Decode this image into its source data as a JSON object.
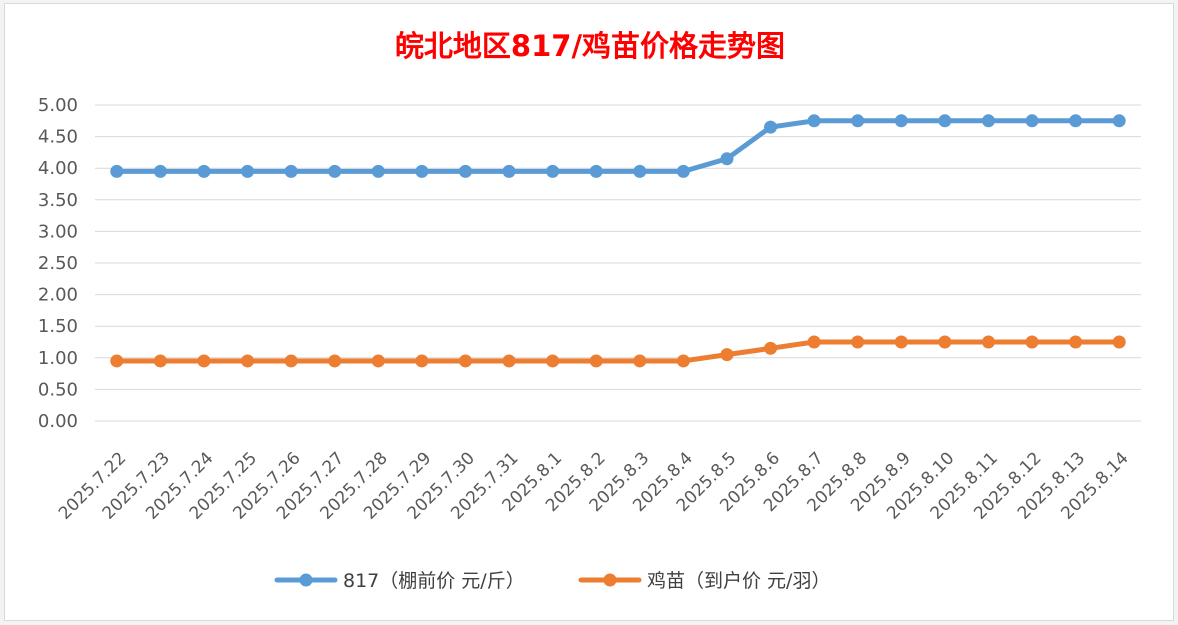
{
  "chart_data": {
    "type": "line",
    "title": "皖北地区817/鸡苗价格走势图",
    "categories": [
      "2025.7.22",
      "2025.7.23",
      "2025.7.24",
      "2025.7.25",
      "2025.7.26",
      "2025.7.27",
      "2025.7.28",
      "2025.7.29",
      "2025.7.30",
      "2025.7.31",
      "2025.8.1",
      "2025.8.2",
      "2025.8.3",
      "2025.8.4",
      "2025.8.5",
      "2025.8.6",
      "2025.8.7",
      "2025.8.8",
      "2025.8.9",
      "2025.8.10",
      "2025.8.11",
      "2025.8.12",
      "2025.8.13",
      "2025.8.14"
    ],
    "yticks": [
      "0.00",
      "0.50",
      "1.00",
      "1.50",
      "2.00",
      "2.50",
      "3.00",
      "3.50",
      "4.00",
      "4.50",
      "5.00"
    ],
    "ylim": [
      0,
      5
    ],
    "grid": true,
    "legend_position": "bottom",
    "series": [
      {
        "name": "817（棚前价 元/斤）",
        "color": "#5b9bd5",
        "values": [
          3.95,
          3.95,
          3.95,
          3.95,
          3.95,
          3.95,
          3.95,
          3.95,
          3.95,
          3.95,
          3.95,
          3.95,
          3.95,
          3.95,
          4.15,
          4.65,
          4.75,
          4.75,
          4.75,
          4.75,
          4.75,
          4.75,
          4.75,
          4.75
        ]
      },
      {
        "name": "鸡苗（到户价 元/羽）",
        "color": "#ed7d31",
        "values": [
          0.95,
          0.95,
          0.95,
          0.95,
          0.95,
          0.95,
          0.95,
          0.95,
          0.95,
          0.95,
          0.95,
          0.95,
          0.95,
          0.95,
          1.05,
          1.15,
          1.25,
          1.25,
          1.25,
          1.25,
          1.25,
          1.25,
          1.25,
          1.25
        ]
      }
    ],
    "title_color": "#ff0000"
  }
}
